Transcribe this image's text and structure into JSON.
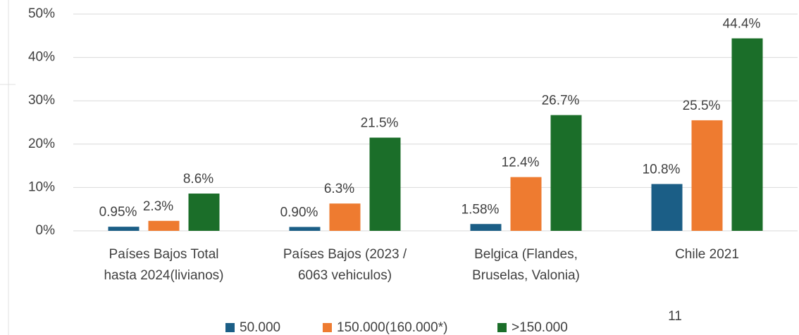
{
  "chart_data": {
    "type": "bar",
    "categories": [
      [
        "Países Bajos Total",
        "hasta 2024(livianos)"
      ],
      [
        "Países Bajos (2023 /",
        "6063 vehiculos)"
      ],
      [
        "Belgica (Flandes,",
        "Bruselas, Valonia)"
      ],
      [
        "Chile 2021"
      ]
    ],
    "series": [
      {
        "name": "50.000",
        "color": "#1b5e86",
        "values": [
          0.95,
          0.9,
          1.58,
          10.8
        ],
        "value_labels": [
          "0.95%",
          "0.90%",
          "1.58%",
          "10.8%"
        ]
      },
      {
        "name": "150.000(160.000*)",
        "color": "#ee7b30",
        "values": [
          2.3,
          6.3,
          12.4,
          25.5
        ],
        "value_labels": [
          "2.3%",
          "6.3%",
          "12.4%",
          "25.5%"
        ]
      },
      {
        "name": ">150.000",
        "color": "#1b6e29",
        "values": [
          8.6,
          21.5,
          26.7,
          44.4
        ],
        "value_labels": [
          "8.6%",
          "21.5%",
          "26.7%",
          "44.4%"
        ]
      }
    ],
    "ylim": [
      0,
      50
    ],
    "yticks": [
      {
        "value": 0,
        "label": "0%"
      },
      {
        "value": 10,
        "label": "10%"
      },
      {
        "value": 20,
        "label": "20%"
      },
      {
        "value": 30,
        "label": "30%"
      },
      {
        "value": 40,
        "label": "40%"
      },
      {
        "value": 50,
        "label": "50%"
      }
    ],
    "grid": true,
    "legend": "bottom"
  },
  "page_number": "11"
}
